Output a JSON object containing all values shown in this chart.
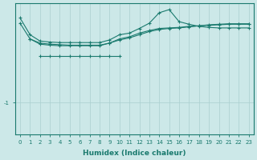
{
  "xlabel": "Humidex (Indice chaleur)",
  "background_color": "#cce8e8",
  "grid_color": "#aacfcf",
  "line_color": "#1a7a6e",
  "x_ticks": [
    0,
    1,
    2,
    3,
    4,
    5,
    6,
    7,
    8,
    9,
    10,
    11,
    12,
    13,
    14,
    15,
    16,
    17,
    18,
    19,
    20,
    21,
    22,
    23
  ],
  "ytick_label": "-1",
  "ytick_val": -1,
  "ylim": [
    -1.6,
    0.9
  ],
  "xlim": [
    -0.5,
    23.5
  ],
  "series": [
    {
      "x": [
        0,
        1,
        2,
        3,
        4,
        5,
        6,
        7,
        8,
        9,
        10,
        11,
        12,
        13,
        14,
        15,
        16,
        17,
        18,
        19,
        20,
        21,
        22,
        23
      ],
      "y": [
        0.62,
        0.3,
        0.18,
        0.16,
        0.15,
        0.15,
        0.15,
        0.15,
        0.15,
        0.2,
        0.3,
        0.33,
        0.42,
        0.52,
        0.72,
        0.78,
        0.55,
        0.5,
        0.46,
        0.44,
        0.43,
        0.43,
        0.43,
        0.43
      ]
    },
    {
      "x": [
        0,
        1,
        2,
        3,
        4,
        5,
        6,
        7,
        8,
        9,
        10,
        11,
        12,
        13,
        14,
        15,
        16,
        17,
        18,
        19,
        20,
        21,
        22,
        23
      ],
      "y": [
        0.52,
        0.22,
        0.12,
        0.1,
        0.09,
        0.09,
        0.09,
        0.09,
        0.09,
        0.14,
        0.22,
        0.26,
        0.33,
        0.38,
        0.42,
        0.43,
        0.44,
        0.46,
        0.47,
        0.48,
        0.49,
        0.5,
        0.5,
        0.5
      ]
    },
    {
      "x": [
        2,
        3,
        4,
        5,
        6,
        7,
        8,
        9,
        10
      ],
      "y": [
        -0.1,
        -0.1,
        -0.1,
        -0.1,
        -0.1,
        -0.1,
        -0.1,
        -0.1,
        -0.1
      ]
    },
    {
      "x": [
        1,
        2,
        3,
        4,
        5,
        6,
        7,
        8,
        9,
        10,
        11,
        12,
        13,
        14,
        15,
        16,
        17,
        18,
        19,
        20,
        21,
        22,
        23
      ],
      "y": [
        0.22,
        0.14,
        0.12,
        0.11,
        0.1,
        0.1,
        0.1,
        0.1,
        0.14,
        0.2,
        0.24,
        0.3,
        0.36,
        0.4,
        0.42,
        0.43,
        0.45,
        0.47,
        0.49,
        0.5,
        0.51,
        0.51,
        0.51
      ]
    }
  ]
}
